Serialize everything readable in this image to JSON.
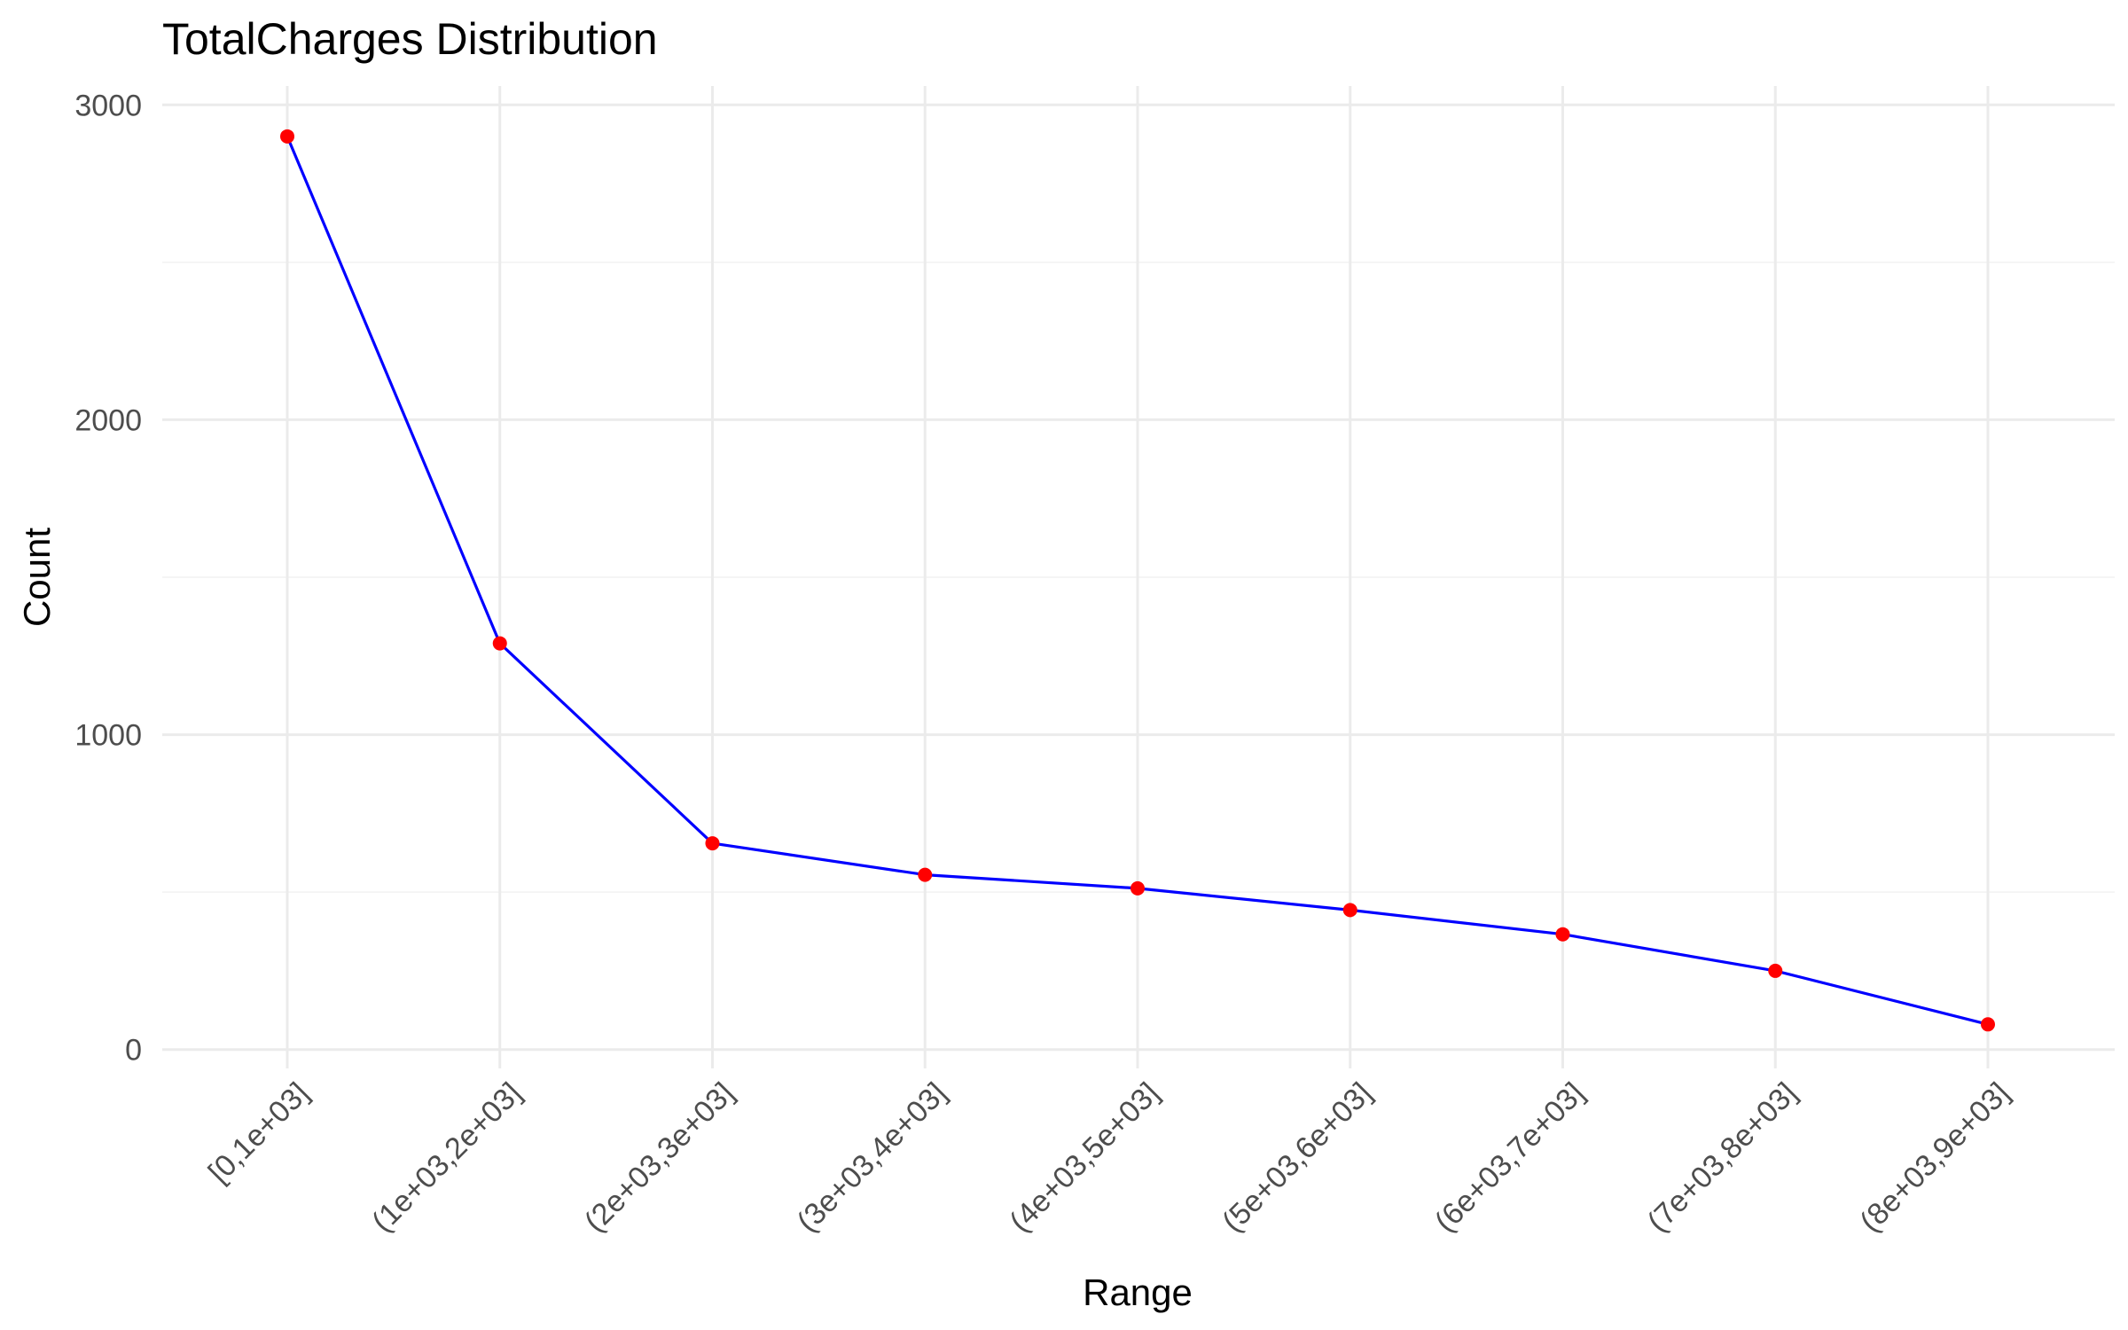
{
  "chart_data": {
    "type": "line",
    "title": "TotalCharges Distribution",
    "xlabel": "Range",
    "ylabel": "Count",
    "categories": [
      "[0,1e+03]",
      "(1e+03,2e+03]",
      "(2e+03,3e+03]",
      "(3e+03,4e+03]",
      "(4e+03,5e+03]",
      "(5e+03,6e+03]",
      "(6e+03,7e+03]",
      "(7e+03,8e+03]",
      "(8e+03,9e+03]"
    ],
    "series": [
      {
        "values": [
          2900,
          1290,
          655,
          555,
          512,
          443,
          366,
          250,
          80
        ]
      }
    ],
    "ylim": [
      -60,
      3060
    ],
    "yticks": [
      "0",
      "1000",
      "2000",
      "3000"
    ],
    "ytick_values": [
      0,
      1000,
      2000,
      3000
    ],
    "grid": true,
    "colors": {
      "line": "#0000ff",
      "points": "#ff0000",
      "grid": "#ebebeb"
    }
  }
}
